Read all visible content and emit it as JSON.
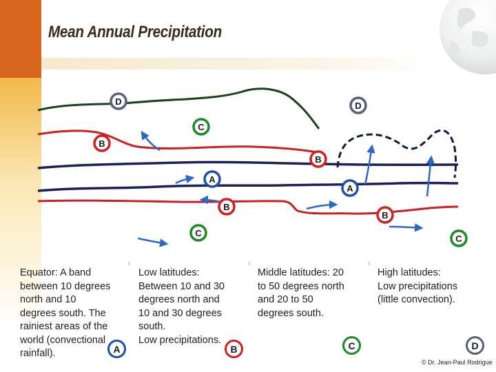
{
  "title": "Mean Annual Precipitation",
  "zones": {
    "A": {
      "letter": "A",
      "color": "#1e4fb0"
    },
    "B": {
      "letter": "B",
      "color": "#d41f1f"
    },
    "C": {
      "letter": "C",
      "color": "#1a8b24"
    },
    "D": {
      "letter": "D",
      "color": "#55607a"
    }
  },
  "map_labels": [
    "D",
    "D",
    "C",
    "B",
    "B",
    "A",
    "A",
    "B",
    "B",
    "C",
    "C"
  ],
  "descriptions": [
    {
      "text": "Equator: A band\nbetween 10 degrees\nnorth and 10\ndegrees south. The\nrainiest areas of the\nworld (convectional\nrainfall).",
      "badge": "A"
    },
    {
      "text": "Low latitudes:\nBetween 10 and 30\ndegrees north and\n10 and 30 degrees\nsouth.\nLow precipitations.",
      "badge": "B"
    },
    {
      "text": "Middle latitudes: 20\nto 50 degrees north\nand 20 to 50\ndegrees south.",
      "badge": "C"
    },
    {
      "text": "High latitudes:\nLow precipitations\n(little convection).",
      "badge": "D"
    }
  ],
  "credit": "© Dr. Jean-Paul Rodrigue"
}
